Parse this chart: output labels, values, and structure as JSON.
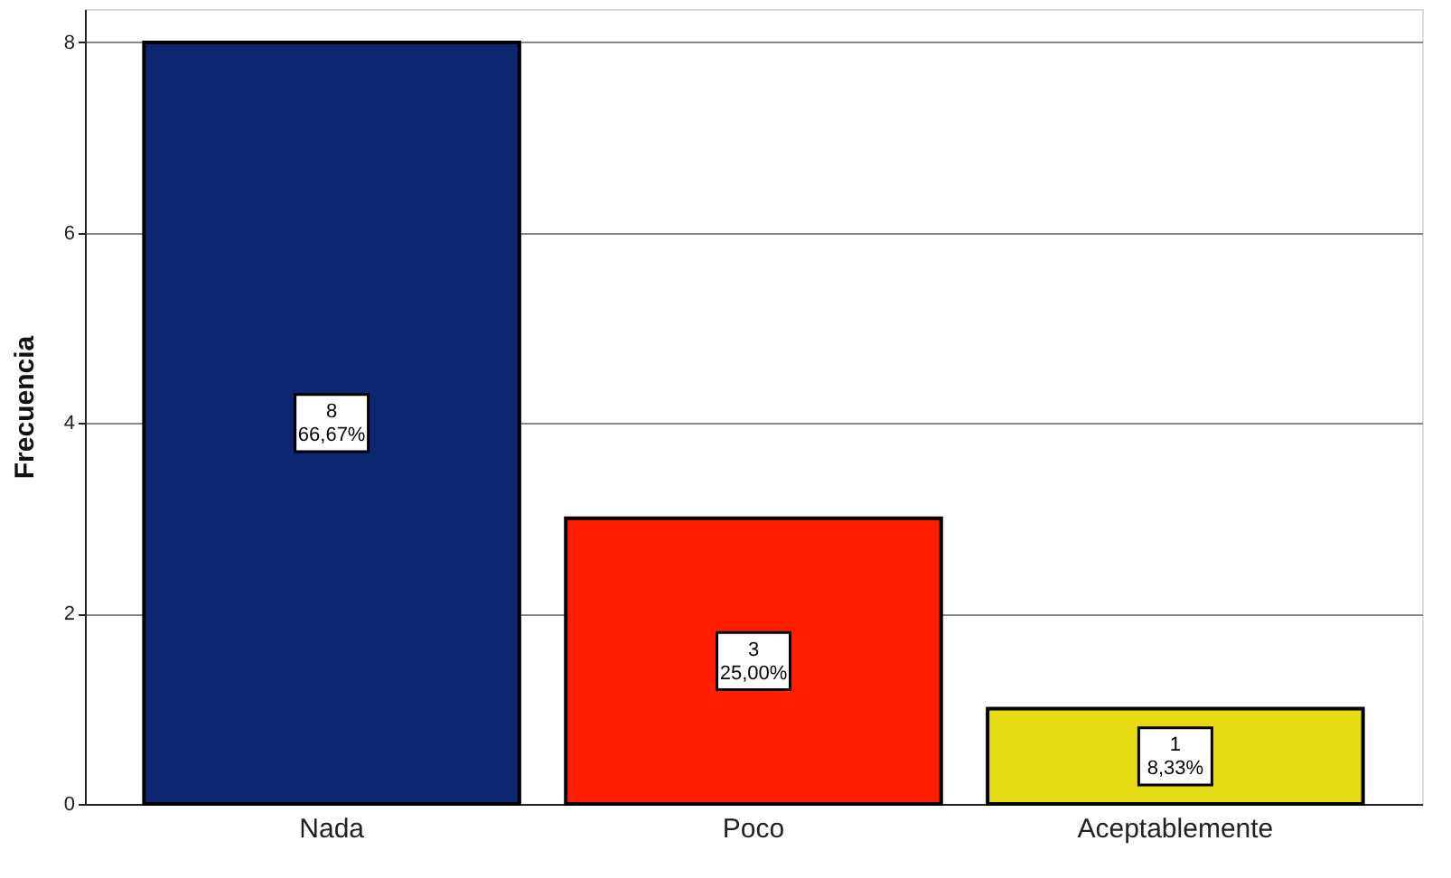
{
  "chart_data": {
    "type": "bar",
    "categories": [
      "Nada",
      "Poco",
      "Aceptablemente"
    ],
    "values": [
      8,
      3,
      1
    ],
    "colors": [
      "#0c2770",
      "#ff1f00",
      "#e6dc15"
    ],
    "value_labels": [
      "8\n66,67%",
      "3\n25,00%",
      "1\n8,33%"
    ],
    "ylabel": "Frecuencia",
    "ylim": [
      0,
      8.35
    ],
    "yticks": [
      0,
      2,
      4,
      6,
      8
    ],
    "grid": "y"
  }
}
